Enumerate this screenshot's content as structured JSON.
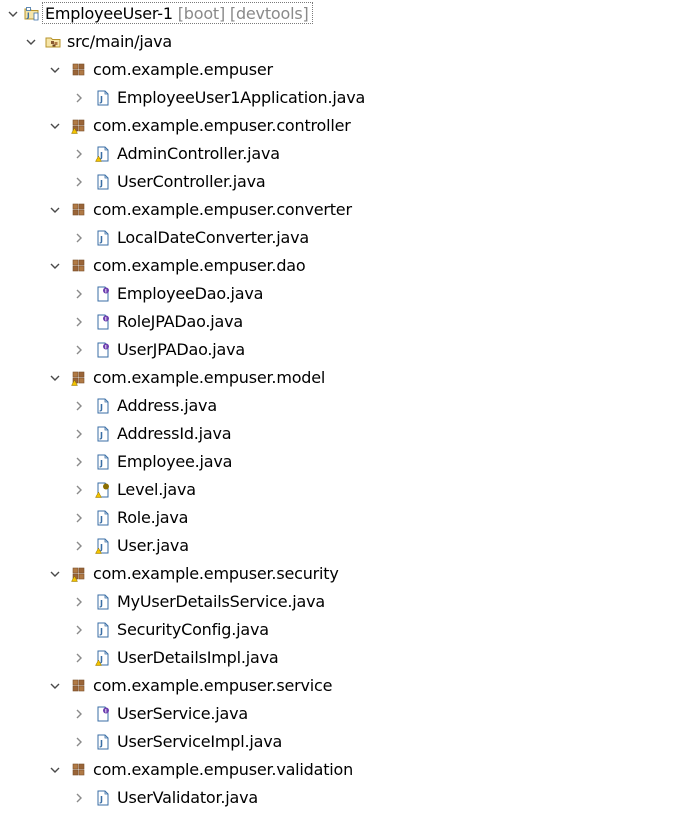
{
  "colors": {
    "expanded_arrow": "#4a4a4a",
    "collapsed_arrow": "#8a8a8a",
    "package_icon": "#8a5a32",
    "java_file_border": "#3a6ea5",
    "decoration_text": "#8a8a8a"
  },
  "tree": {
    "project": {
      "name": "EmployeeUser-1",
      "decorations": "[boot] [devtools]",
      "icon": "java-project-icon",
      "expanded": true
    },
    "source_folder": {
      "name": "src/main/java",
      "icon": "source-folder-icon",
      "expanded": true
    },
    "packages": [
      {
        "name": "com.example.empuser",
        "icon": "package-icon",
        "warning": false,
        "expanded": true,
        "files": [
          {
            "name": "EmployeeUser1Application.java",
            "kind": "class"
          }
        ]
      },
      {
        "name": "com.example.empuser.controller",
        "icon": "package-icon",
        "warning": true,
        "expanded": true,
        "files": [
          {
            "name": "AdminController.java",
            "kind": "class-warning"
          },
          {
            "name": "UserController.java",
            "kind": "class"
          }
        ]
      },
      {
        "name": "com.example.empuser.converter",
        "icon": "package-icon",
        "warning": false,
        "expanded": true,
        "files": [
          {
            "name": "LocalDateConverter.java",
            "kind": "class"
          }
        ]
      },
      {
        "name": "com.example.empuser.dao",
        "icon": "package-icon",
        "warning": false,
        "expanded": true,
        "files": [
          {
            "name": "EmployeeDao.java",
            "kind": "interface"
          },
          {
            "name": "RoleJPADao.java",
            "kind": "interface"
          },
          {
            "name": "UserJPADao.java",
            "kind": "interface"
          }
        ]
      },
      {
        "name": "com.example.empuser.model",
        "icon": "package-icon",
        "warning": true,
        "expanded": true,
        "files": [
          {
            "name": "Address.java",
            "kind": "class"
          },
          {
            "name": "AddressId.java",
            "kind": "class"
          },
          {
            "name": "Employee.java",
            "kind": "class"
          },
          {
            "name": "Level.java",
            "kind": "enum-warning"
          },
          {
            "name": "Role.java",
            "kind": "class"
          },
          {
            "name": "User.java",
            "kind": "class-warning"
          }
        ]
      },
      {
        "name": "com.example.empuser.security",
        "icon": "package-icon",
        "warning": true,
        "expanded": true,
        "files": [
          {
            "name": "MyUserDetailsService.java",
            "kind": "class"
          },
          {
            "name": "SecurityConfig.java",
            "kind": "class"
          },
          {
            "name": "UserDetailsImpl.java",
            "kind": "class-warning"
          }
        ]
      },
      {
        "name": "com.example.empuser.service",
        "icon": "package-icon",
        "warning": false,
        "expanded": true,
        "files": [
          {
            "name": "UserService.java",
            "kind": "interface"
          },
          {
            "name": "UserServiceImpl.java",
            "kind": "class"
          }
        ]
      },
      {
        "name": "com.example.empuser.validation",
        "icon": "package-icon",
        "warning": false,
        "expanded": true,
        "files": [
          {
            "name": "UserValidator.java",
            "kind": "class"
          }
        ]
      }
    ]
  }
}
